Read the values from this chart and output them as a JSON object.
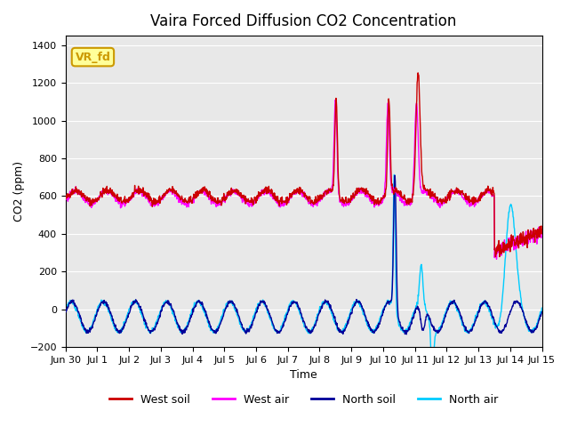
{
  "title": "Vaira Forced Diffusion CO2 Concentration",
  "xlabel": "Time",
  "ylabel": "CO2 (ppm)",
  "ylim": [
    -200,
    1450
  ],
  "yticks": [
    -200,
    0,
    200,
    400,
    600,
    800,
    1000,
    1200,
    1400
  ],
  "xtick_labels": [
    "Jun 30",
    "Jul 1",
    "Jul 2",
    "Jul 3",
    "Jul 4",
    "Jul 5",
    "Jul 6",
    "Jul 7",
    "Jul 8",
    "Jul 9",
    "Jul 10",
    "Jul 11",
    "Jul 12",
    "Jul 13",
    "Jul 14",
    "Jul 15"
  ],
  "legend_labels": [
    "West soil",
    "West air",
    "North soil",
    "North air"
  ],
  "legend_colors": [
    "#cc0000",
    "#ff00ff",
    "#000099",
    "#00ccff"
  ],
  "colors": {
    "west_soil": "#cc0000",
    "west_air": "#ff00ff",
    "north_soil": "#000099",
    "north_air": "#00ccff"
  },
  "watermark_text": "VR_fd",
  "watermark_bg": "#ffff99",
  "watermark_border": "#cc9900",
  "plot_bg": "#e8e8e8",
  "figsize": [
    6.4,
    4.8
  ],
  "dpi": 100
}
